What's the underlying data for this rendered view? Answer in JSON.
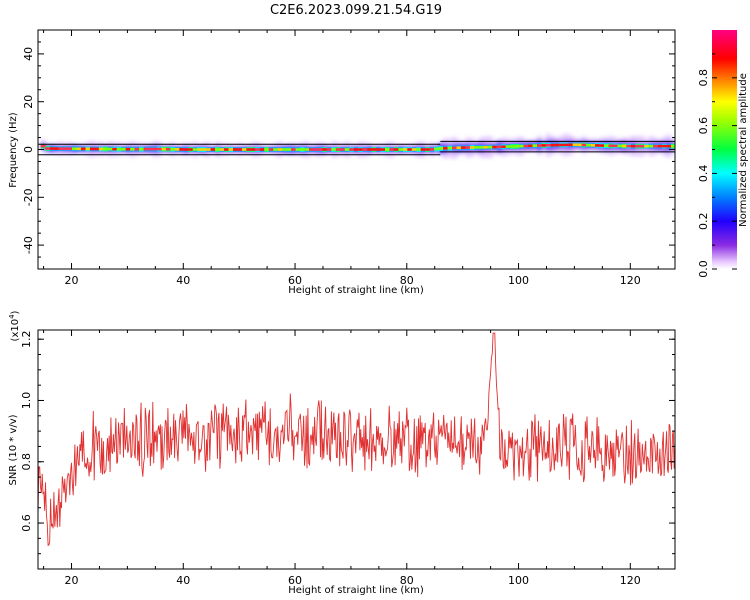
{
  "title": "C2E6.2023.099.21.54.G19",
  "chart_data": [
    {
      "type": "heatmap",
      "xlabel": "Height of straight line (km)",
      "ylabel": "Frequency (Hz)",
      "xlim": [
        14,
        128
      ],
      "ylim": [
        -50,
        50
      ],
      "xticks": [
        20,
        40,
        60,
        80,
        100,
        120
      ],
      "yticks": [
        -40,
        -20,
        0,
        20,
        40
      ],
      "colorbar": {
        "label": "Normalized spectral amplitude",
        "range": [
          0,
          1
        ],
        "ticks": [
          "0.0",
          "0.2",
          "0.4",
          "0.6",
          "0.8"
        ],
        "colormap": "rainbow (purple-blue-cyan-green-yellow-orange-red-magenta)"
      },
      "peak_track": [
        {
          "height": 15,
          "freq": 0.4
        },
        {
          "height": 20,
          "freq": 0.3
        },
        {
          "height": 25,
          "freq": 0.2
        },
        {
          "height": 30,
          "freq": 0.1
        },
        {
          "height": 35,
          "freq": 0.2
        },
        {
          "height": 40,
          "freq": 0.0
        },
        {
          "height": 45,
          "freq": 0.0
        },
        {
          "height": 50,
          "freq": 0.0
        },
        {
          "height": 55,
          "freq": 0.0
        },
        {
          "height": 60,
          "freq": 0.0
        },
        {
          "height": 65,
          "freq": 0.0
        },
        {
          "height": 70,
          "freq": 0.0
        },
        {
          "height": 75,
          "freq": 0.0
        },
        {
          "height": 80,
          "freq": 0.0
        },
        {
          "height": 84,
          "freq": 0.0
        },
        {
          "height": 86,
          "freq": 0.5
        },
        {
          "height": 90,
          "freq": 0.8
        },
        {
          "height": 95,
          "freq": 1.0
        },
        {
          "height": 100,
          "freq": 1.4
        },
        {
          "height": 105,
          "freq": 1.8
        },
        {
          "height": 110,
          "freq": 2.0
        },
        {
          "height": 115,
          "freq": 1.6
        },
        {
          "height": 120,
          "freq": 1.4
        },
        {
          "height": 127,
          "freq": 1.4
        }
      ]
    },
    {
      "type": "line",
      "xlabel": "Height of straight line (km)",
      "ylabel": "SNR (10 * v/v)",
      "y_scale_label": "(x10",
      "y_scale_exp": "4",
      "y_scale_close": ")",
      "xlim": [
        14,
        128
      ],
      "ylim": [
        0.45,
        1.23
      ],
      "xticks": [
        20,
        40,
        60,
        80,
        100,
        120
      ],
      "yticks": [
        "0.6",
        "0.8",
        "1.0",
        "1.2"
      ],
      "ytick_values": [
        0.6,
        0.8,
        1.0,
        1.2
      ],
      "color": "#e03030",
      "series": [
        {
          "x": [
            14,
            16,
            18,
            20,
            22,
            24,
            26,
            28,
            30,
            32,
            34,
            36,
            38,
            40,
            42,
            44,
            46,
            48,
            50,
            52,
            54,
            56,
            58,
            60,
            62,
            64,
            66,
            68,
            70,
            72,
            74,
            76,
            78,
            80,
            82,
            84,
            86,
            88,
            90,
            92,
            94,
            95.5,
            97,
            98,
            100,
            102,
            104,
            106,
            108,
            110,
            112,
            114,
            116,
            118,
            120,
            122,
            124,
            126,
            127.5
          ],
          "y": [
            0.7,
            0.58,
            0.66,
            0.74,
            0.82,
            0.86,
            0.84,
            0.86,
            0.88,
            0.86,
            0.9,
            0.87,
            0.88,
            0.9,
            0.89,
            0.88,
            0.89,
            0.9,
            0.88,
            0.89,
            0.9,
            0.89,
            0.9,
            0.9,
            0.88,
            0.89,
            0.87,
            0.88,
            0.87,
            0.87,
            0.88,
            0.87,
            0.86,
            0.87,
            0.85,
            0.86,
            0.87,
            0.85,
            0.86,
            0.85,
            0.86,
            1.22,
            0.78,
            0.84,
            0.83,
            0.85,
            0.84,
            0.83,
            0.85,
            0.84,
            0.82,
            0.84,
            0.8,
            0.83,
            0.82,
            0.84,
            0.81,
            0.85,
            0.86
          ]
        }
      ]
    }
  ]
}
